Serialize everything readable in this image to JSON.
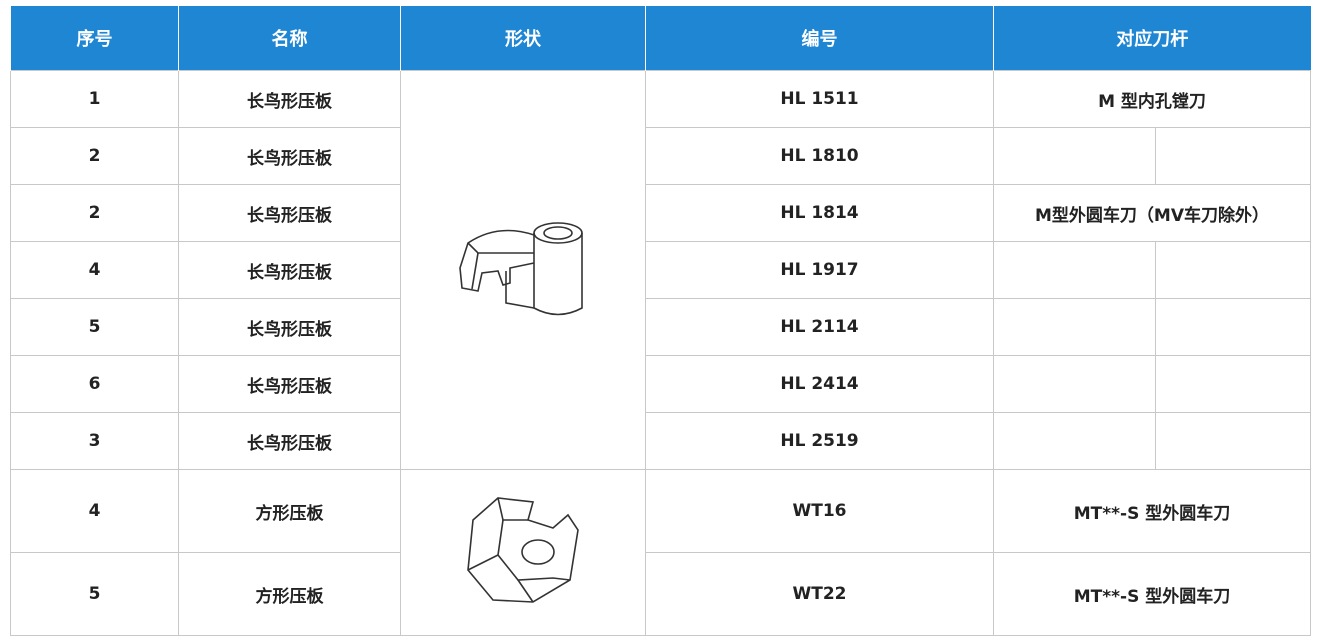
{
  "table": {
    "header": [
      "序号",
      "名称",
      "形状",
      "编号",
      "对应刀杆"
    ],
    "rows": [
      [
        "1",
        "长鸟形压板",
        "HL 1511",
        "M 型内孔镗刀"
      ],
      [
        "2",
        "长鸟形压板",
        "HL 1810"
      ],
      [
        "2",
        "长鸟形压板",
        "HL 1814",
        "M型外圆车刀（MV车刀除外）"
      ],
      [
        "4",
        "长鸟形压板",
        "HL 1917"
      ],
      [
        "5",
        "长鸟形压板",
        "HL 2114"
      ],
      [
        "6",
        "长鸟形压板",
        "HL 2414"
      ],
      [
        "3",
        "长鸟形压板",
        "HL 2519"
      ],
      [
        "4",
        "方形压板",
        "WT16",
        "MT**-S 型外圆车刀"
      ],
      [
        "5",
        "方形压板",
        "WT22",
        "MT**-S 型外圆车刀"
      ]
    ]
  }
}
